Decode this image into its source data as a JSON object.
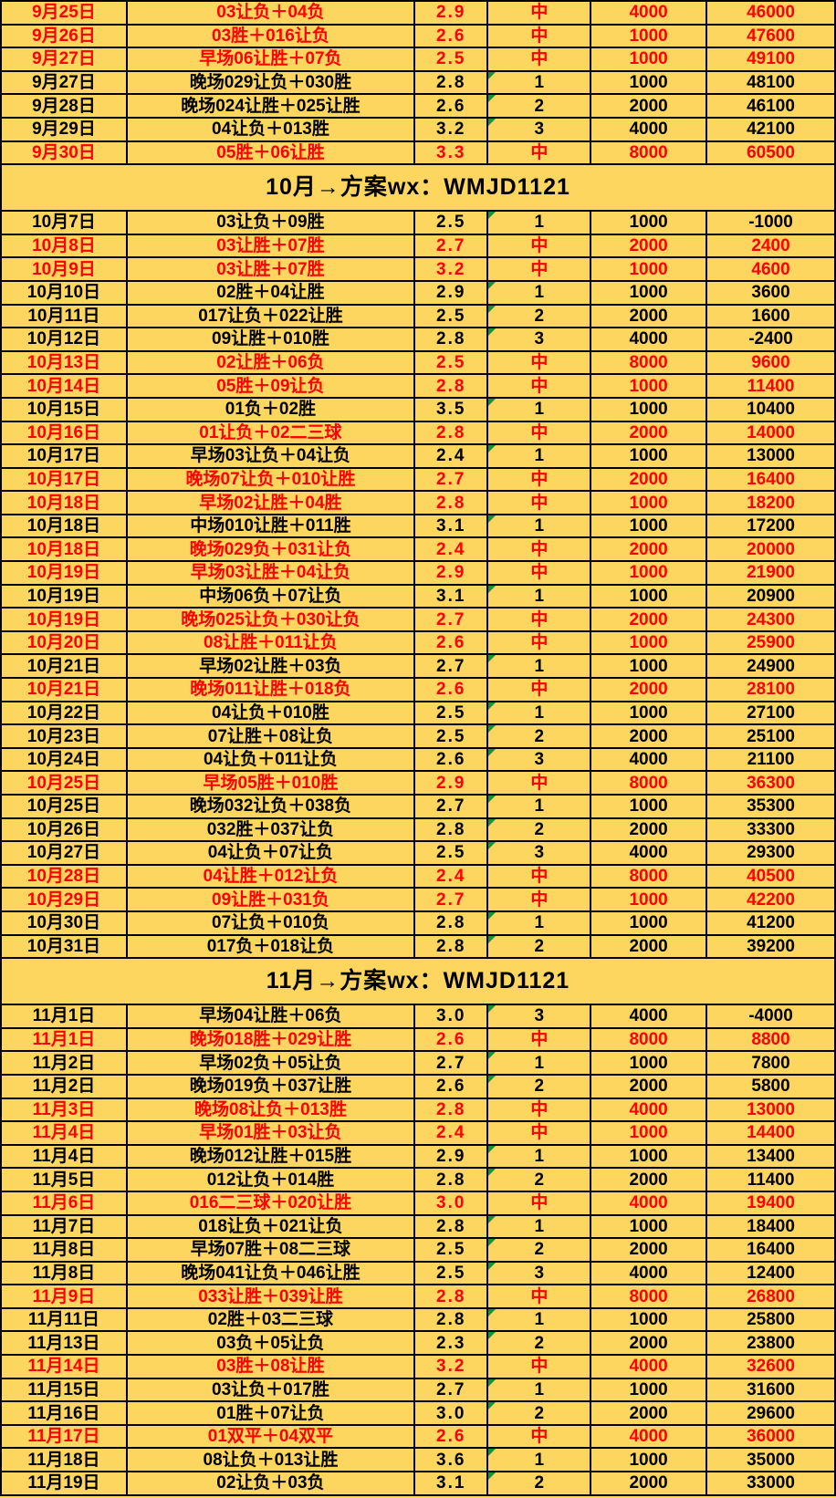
{
  "colors": {
    "background": "#fcd65e",
    "win_text": "#fe0000",
    "normal_text": "#000000",
    "border": "#000000",
    "note_triangle": "#17923b"
  },
  "icons": {
    "cell_note_triangle": "green corner triangle on numeric result cells"
  },
  "table": {
    "win_marker": "中",
    "columns": [
      "date",
      "scheme",
      "odds",
      "result",
      "amount",
      "running_total"
    ],
    "sections": [
      {
        "header": null,
        "rows": [
          [
            "9月25日",
            "03让负＋04负",
            "2.9",
            "中",
            "4000",
            "46000"
          ],
          [
            "9月26日",
            "03胜＋016让负",
            "2.6",
            "中",
            "1000",
            "47600"
          ],
          [
            "9月27日",
            "早场06让胜＋07负",
            "2.5",
            "中",
            "1000",
            "49100"
          ],
          [
            "9月27日",
            "晚场029让负＋030胜",
            "2.8",
            "1",
            "1000",
            "48100"
          ],
          [
            "9月28日",
            "晚场024让胜＋025让胜",
            "2.6",
            "2",
            "2000",
            "46100"
          ],
          [
            "9月29日",
            "04让负＋013胜",
            "3.2",
            "3",
            "4000",
            "42100"
          ],
          [
            "9月30日",
            "05胜＋06让胜",
            "3.3",
            "中",
            "8000",
            "60500"
          ]
        ]
      },
      {
        "header": "10月→方案wx：WMJD1121",
        "rows": [
          [
            "10月7日",
            "03让负＋09胜",
            "2.5",
            "1",
            "1000",
            "-1000"
          ],
          [
            "10月8日",
            "03让胜＋07胜",
            "2.7",
            "中",
            "2000",
            "2400"
          ],
          [
            "10月9日",
            "03让胜＋07胜",
            "3.2",
            "中",
            "1000",
            "4600"
          ],
          [
            "10月10日",
            "02胜＋04让胜",
            "2.9",
            "1",
            "1000",
            "3600"
          ],
          [
            "10月11日",
            "017让负＋022让胜",
            "2.5",
            "2",
            "2000",
            "1600"
          ],
          [
            "10月12日",
            "09让胜＋010胜",
            "2.8",
            "3",
            "4000",
            "-2400"
          ],
          [
            "10月13日",
            "02让胜＋06负",
            "2.5",
            "中",
            "8000",
            "9600"
          ],
          [
            "10月14日",
            "05胜＋09让负",
            "2.8",
            "中",
            "1000",
            "11400"
          ],
          [
            "10月15日",
            "01负＋02胜",
            "3.5",
            "1",
            "1000",
            "10400"
          ],
          [
            "10月16日",
            "01让负＋02二三球",
            "2.8",
            "中",
            "2000",
            "14000"
          ],
          [
            "10月17日",
            "早场03让负＋04让负",
            "2.4",
            "1",
            "1000",
            "13000"
          ],
          [
            "10月17日",
            "晚场07让负＋010让胜",
            "2.7",
            "中",
            "2000",
            "16400"
          ],
          [
            "10月18日",
            "早场02让胜＋04胜",
            "2.8",
            "中",
            "1000",
            "18200"
          ],
          [
            "10月18日",
            "中场010让胜＋011胜",
            "3.1",
            "1",
            "1000",
            "17200"
          ],
          [
            "10月18日",
            "晚场029负＋031让负",
            "2.4",
            "中",
            "2000",
            "20000"
          ],
          [
            "10月19日",
            "早场03让胜＋04让负",
            "2.9",
            "中",
            "1000",
            "21900"
          ],
          [
            "10月19日",
            "中场06负＋07让负",
            "3.1",
            "1",
            "1000",
            "20900"
          ],
          [
            "10月19日",
            "晚场025让负＋030让负",
            "2.7",
            "中",
            "2000",
            "24300"
          ],
          [
            "10月20日",
            "08让胜＋011让负",
            "2.6",
            "中",
            "1000",
            "25900"
          ],
          [
            "10月21日",
            "早场02让胜＋03负",
            "2.7",
            "1",
            "1000",
            "24900"
          ],
          [
            "10月21日",
            "晚场011让胜＋018负",
            "2.6",
            "中",
            "2000",
            "28100"
          ],
          [
            "10月22日",
            "04让负＋010胜",
            "2.5",
            "1",
            "1000",
            "27100"
          ],
          [
            "10月23日",
            "07让胜＋08让负",
            "2.5",
            "2",
            "2000",
            "25100"
          ],
          [
            "10月24日",
            "04让负＋011让负",
            "2.6",
            "3",
            "4000",
            "21100"
          ],
          [
            "10月25日",
            "早场05胜＋010胜",
            "2.9",
            "中",
            "8000",
            "36300"
          ],
          [
            "10月25日",
            "晚场032让负＋038负",
            "2.7",
            "1",
            "1000",
            "35300"
          ],
          [
            "10月26日",
            "032胜＋037让负",
            "2.8",
            "2",
            "2000",
            "33300"
          ],
          [
            "10月27日",
            "04让负＋07让负",
            "2.5",
            "3",
            "4000",
            "29300"
          ],
          [
            "10月28日",
            "04让胜＋012让负",
            "2.4",
            "中",
            "8000",
            "40500"
          ],
          [
            "10月29日",
            "09让胜＋031负",
            "2.7",
            "中",
            "1000",
            "42200"
          ],
          [
            "10月30日",
            "07让负＋010负",
            "2.8",
            "1",
            "1000",
            "41200"
          ],
          [
            "10月31日",
            "017负＋018让负",
            "2.8",
            "2",
            "2000",
            "39200"
          ]
        ]
      },
      {
        "header": "11月→方案wx：WMJD1121",
        "rows": [
          [
            "11月1日",
            "早场04让胜＋06负",
            "3.0",
            "3",
            "4000",
            "-4000"
          ],
          [
            "11月1日",
            "晚场018胜＋029让胜",
            "2.6",
            "中",
            "8000",
            "8800"
          ],
          [
            "11月2日",
            "早场02负＋05让负",
            "2.7",
            "1",
            "1000",
            "7800"
          ],
          [
            "11月2日",
            "晚场019负＋037让胜",
            "2.6",
            "2",
            "2000",
            "5800"
          ],
          [
            "11月3日",
            "晚场08让负＋013胜",
            "2.8",
            "中",
            "4000",
            "13000"
          ],
          [
            "11月4日",
            "早场01胜＋03让负",
            "2.4",
            "中",
            "1000",
            "14400"
          ],
          [
            "11月4日",
            "晚场012让胜＋015胜",
            "2.9",
            "1",
            "1000",
            "13400"
          ],
          [
            "11月5日",
            "012让负＋014胜",
            "2.8",
            "2",
            "2000",
            "11400"
          ],
          [
            "11月6日",
            "016二三球＋020让胜",
            "3.0",
            "中",
            "4000",
            "19400"
          ],
          [
            "11月7日",
            "018让负＋021让负",
            "2.8",
            "1",
            "1000",
            "18400"
          ],
          [
            "11月8日",
            "早场07胜＋08二三球",
            "2.5",
            "2",
            "2000",
            "16400"
          ],
          [
            "11月8日",
            "晚场041让负＋046让胜",
            "2.5",
            "3",
            "4000",
            "12400"
          ],
          [
            "11月9日",
            "033让胜＋039让胜",
            "2.8",
            "中",
            "8000",
            "26800"
          ],
          [
            "11月11日",
            "02胜＋03二三球",
            "2.8",
            "1",
            "1000",
            "25800"
          ],
          [
            "11月13日",
            "03负＋05让负",
            "2.3",
            "2",
            "2000",
            "23800"
          ],
          [
            "11月14日",
            "03胜＋08让胜",
            "3.2",
            "中",
            "4000",
            "32600"
          ],
          [
            "11月15日",
            "03让负＋017胜",
            "2.7",
            "1",
            "1000",
            "31600"
          ],
          [
            "11月16日",
            "01胜＋07让负",
            "3.0",
            "2",
            "2000",
            "29600"
          ],
          [
            "11月17日",
            "01双平＋04双平",
            "2.6",
            "中",
            "4000",
            "36000"
          ],
          [
            "11月18日",
            "08让负＋013让胜",
            "3.6",
            "1",
            "1000",
            "35000"
          ],
          [
            "11月19日",
            "02让负＋03负",
            "3.1",
            "2",
            "2000",
            "33000"
          ]
        ]
      }
    ]
  }
}
